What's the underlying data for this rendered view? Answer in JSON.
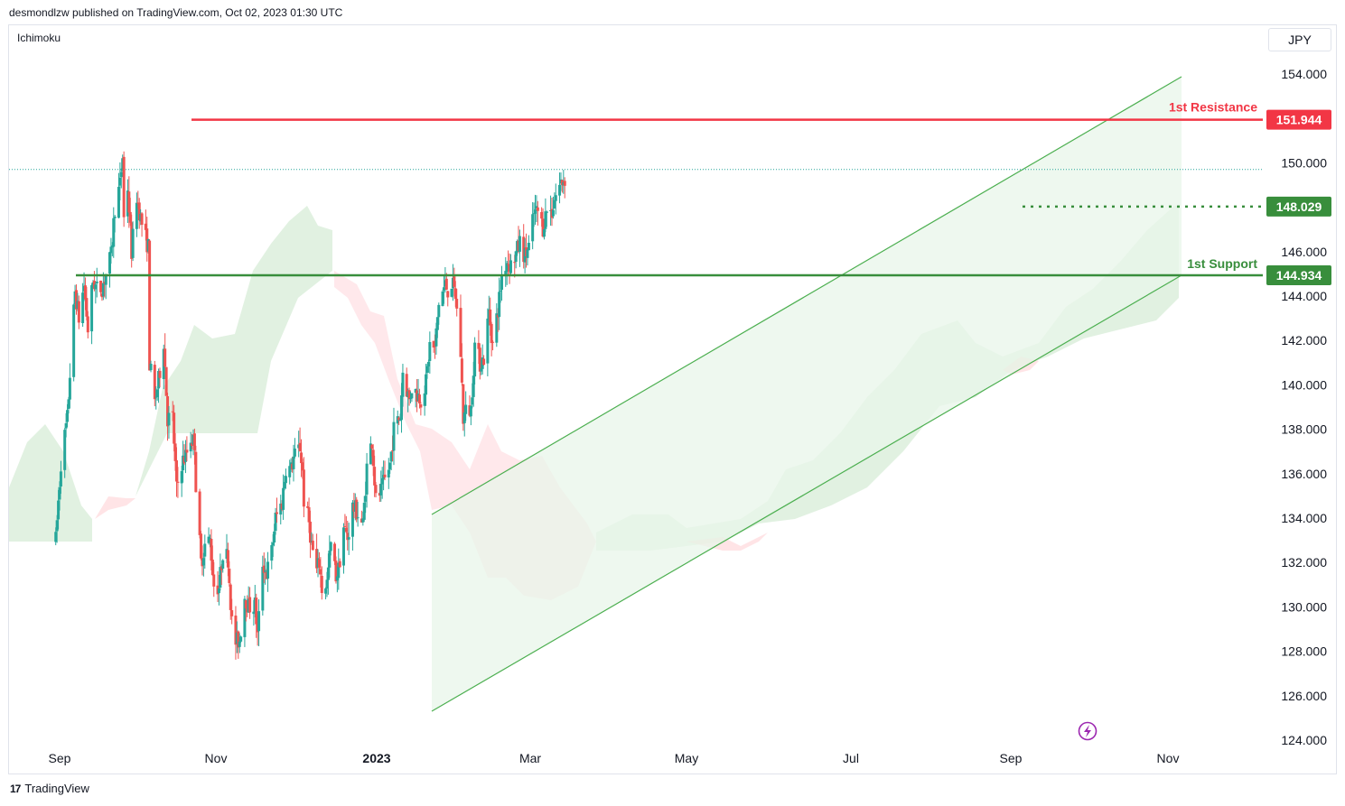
{
  "header": {
    "text": "desmondlzw published on TradingView.com, Oct 02, 2023 01:30 UTC"
  },
  "indicator": {
    "name": "Ichimoku"
  },
  "currency": "JPY",
  "footer": {
    "brand": "TradingView",
    "logo": "17"
  },
  "colors": {
    "up": "#26a69a",
    "down": "#ef5350",
    "resistance": "#f23645",
    "support": "#388e3c",
    "channel": "#4caf50",
    "cloud_bull": "#c8e6c9",
    "cloud_bear": "#ffcdd2"
  },
  "chart_data": {
    "type": "candlestick",
    "symbol_currency": "JPY",
    "y_axis": {
      "ylim": [
        124,
        156
      ],
      "ticks": [
        "154.000",
        "152.000",
        "150.000",
        "148.000",
        "146.000",
        "144.000",
        "142.000",
        "140.000",
        "138.000",
        "136.000",
        "134.000",
        "132.000",
        "130.000",
        "128.000",
        "126.000",
        "124.000"
      ]
    },
    "x_axis": {
      "labels": [
        {
          "text": "Sep",
          "bold": false
        },
        {
          "text": "Nov",
          "bold": false
        },
        {
          "text": "2023",
          "bold": true
        },
        {
          "text": "Mar",
          "bold": false
        },
        {
          "text": "May",
          "bold": false
        },
        {
          "text": "Jul",
          "bold": false
        },
        {
          "text": "Sep",
          "bold": false
        },
        {
          "text": "Nov",
          "bold": false
        }
      ]
    },
    "levels": [
      {
        "label": "1st Resistance",
        "value": "151.944",
        "price": 151.944,
        "kind": "resistance"
      },
      {
        "label": "",
        "value": "148.029",
        "price": 148.029,
        "kind": "pivot"
      },
      {
        "label": "1st Support",
        "value": "144.934",
        "price": 144.934,
        "kind": "support"
      }
    ],
    "last_price": 149.7,
    "price_path": [
      [
        "2022-08-29",
        133.0
      ],
      [
        "2022-09-02",
        136.5
      ],
      [
        "2022-09-07",
        138.5
      ],
      [
        "2022-09-09",
        140.5
      ],
      [
        "2022-09-13",
        144.2
      ],
      [
        "2022-09-16",
        143.0
      ],
      [
        "2022-09-20",
        144.5
      ],
      [
        "2022-09-23",
        142.5
      ],
      [
        "2022-09-27",
        144.7
      ],
      [
        "2022-09-30",
        144.3
      ],
      [
        "2022-10-04",
        144.4
      ],
      [
        "2022-10-07",
        145.0
      ],
      [
        "2022-10-11",
        145.8
      ],
      [
        "2022-10-14",
        148.0
      ],
      [
        "2022-10-18",
        149.0
      ],
      [
        "2022-10-20",
        150.3
      ],
      [
        "2022-10-21",
        147.5
      ],
      [
        "2022-10-24",
        148.9
      ],
      [
        "2022-10-27",
        146.0
      ],
      [
        "2022-10-31",
        148.5
      ],
      [
        "2022-11-03",
        147.5
      ],
      [
        "2022-11-07",
        146.6
      ],
      [
        "2022-11-09",
        146.2
      ],
      [
        "2022-11-10",
        141.0
      ],
      [
        "2022-11-14",
        139.2
      ],
      [
        "2022-11-17",
        140.2
      ],
      [
        "2022-11-21",
        142.0
      ],
      [
        "2022-11-24",
        138.5
      ],
      [
        "2022-11-28",
        138.5
      ],
      [
        "2022-12-01",
        135.3
      ],
      [
        "2022-12-05",
        136.5
      ],
      [
        "2022-12-08",
        136.8
      ],
      [
        "2022-12-12",
        137.6
      ],
      [
        "2022-12-15",
        137.4
      ],
      [
        "2022-12-16",
        135.5
      ],
      [
        "2022-12-20",
        132.0
      ],
      [
        "2022-12-23",
        132.8
      ],
      [
        "2022-12-27",
        133.0
      ],
      [
        "2022-12-30",
        131.0
      ],
      [
        "2023-01-03",
        130.9
      ],
      [
        "2023-01-06",
        132.5
      ],
      [
        "2023-01-10",
        132.2
      ],
      [
        "2023-01-13",
        129.3
      ],
      [
        "2023-01-16",
        128.4
      ],
      [
        "2023-01-19",
        128.5
      ],
      [
        "2023-01-23",
        130.5
      ],
      [
        "2023-01-26",
        130.0
      ],
      [
        "2023-01-31",
        130.1
      ],
      [
        "2023-02-02",
        128.7
      ],
      [
        "2023-02-06",
        132.0
      ],
      [
        "2023-02-09",
        131.5
      ],
      [
        "2023-02-13",
        132.5
      ],
      [
        "2023-02-16",
        134.0
      ],
      [
        "2023-02-21",
        134.7
      ],
      [
        "2023-02-24",
        136.3
      ],
      [
        "2023-02-28",
        136.2
      ],
      [
        "2023-03-02",
        136.7
      ],
      [
        "2023-03-07",
        137.2
      ],
      [
        "2023-03-09",
        136.1
      ],
      [
        "2023-03-10",
        134.8
      ],
      [
        "2023-03-14",
        133.8
      ],
      [
        "2023-03-16",
        132.8
      ],
      [
        "2023-03-20",
        131.6
      ],
      [
        "2023-03-22",
        132.0
      ],
      [
        "2023-03-24",
        130.8
      ],
      [
        "2023-03-28",
        131.1
      ],
      [
        "2023-03-31",
        132.8
      ],
      [
        "2023-04-04",
        131.4
      ],
      [
        "2023-04-06",
        131.7
      ],
      [
        "2023-04-10",
        133.6
      ],
      [
        "2023-04-13",
        133.1
      ],
      [
        "2023-04-17",
        134.5
      ],
      [
        "2023-04-20",
        134.3
      ],
      [
        "2023-04-25",
        133.7
      ],
      [
        "2023-04-28",
        136.3
      ],
      [
        "2023-05-02",
        137.5
      ],
      [
        "2023-05-05",
        134.8
      ],
      [
        "2023-05-09",
        135.2
      ],
      [
        "2023-05-12",
        135.7
      ],
      [
        "2023-05-16",
        136.4
      ],
      [
        "2023-05-19",
        138.0
      ],
      [
        "2023-05-24",
        138.6
      ],
      [
        "2023-05-26",
        140.6
      ],
      [
        "2023-05-31",
        139.3
      ],
      [
        "2023-06-02",
        139.9
      ],
      [
        "2023-06-06",
        139.6
      ],
      [
        "2023-06-09",
        139.4
      ],
      [
        "2023-06-13",
        140.1
      ],
      [
        "2023-06-16",
        141.8
      ],
      [
        "2023-06-20",
        141.6
      ],
      [
        "2023-06-23",
        143.7
      ],
      [
        "2023-06-28",
        144.5
      ],
      [
        "2023-06-30",
        144.3
      ],
      [
        "2023-07-03",
        144.6
      ],
      [
        "2023-07-06",
        144.0
      ],
      [
        "2023-07-10",
        141.4
      ],
      [
        "2023-07-12",
        138.5
      ],
      [
        "2023-07-14",
        138.8
      ],
      [
        "2023-07-18",
        138.9
      ],
      [
        "2023-07-21",
        141.8
      ],
      [
        "2023-07-25",
        141.0
      ],
      [
        "2023-07-28",
        141.2
      ],
      [
        "2023-08-01",
        143.3
      ],
      [
        "2023-08-04",
        141.8
      ],
      [
        "2023-08-08",
        143.4
      ],
      [
        "2023-08-11",
        144.9
      ],
      [
        "2023-08-15",
        145.6
      ],
      [
        "2023-08-18",
        145.4
      ],
      [
        "2023-08-22",
        145.9
      ],
      [
        "2023-08-25",
        146.4
      ],
      [
        "2023-08-29",
        145.8
      ],
      [
        "2023-09-01",
        146.2
      ],
      [
        "2023-09-05",
        147.7
      ],
      [
        "2023-09-08",
        147.8
      ],
      [
        "2023-09-12",
        147.1
      ],
      [
        "2023-09-15",
        147.9
      ],
      [
        "2023-09-19",
        147.8
      ],
      [
        "2023-09-21",
        148.4
      ],
      [
        "2023-09-26",
        149.1
      ],
      [
        "2023-09-29",
        149.3
      ]
    ]
  }
}
